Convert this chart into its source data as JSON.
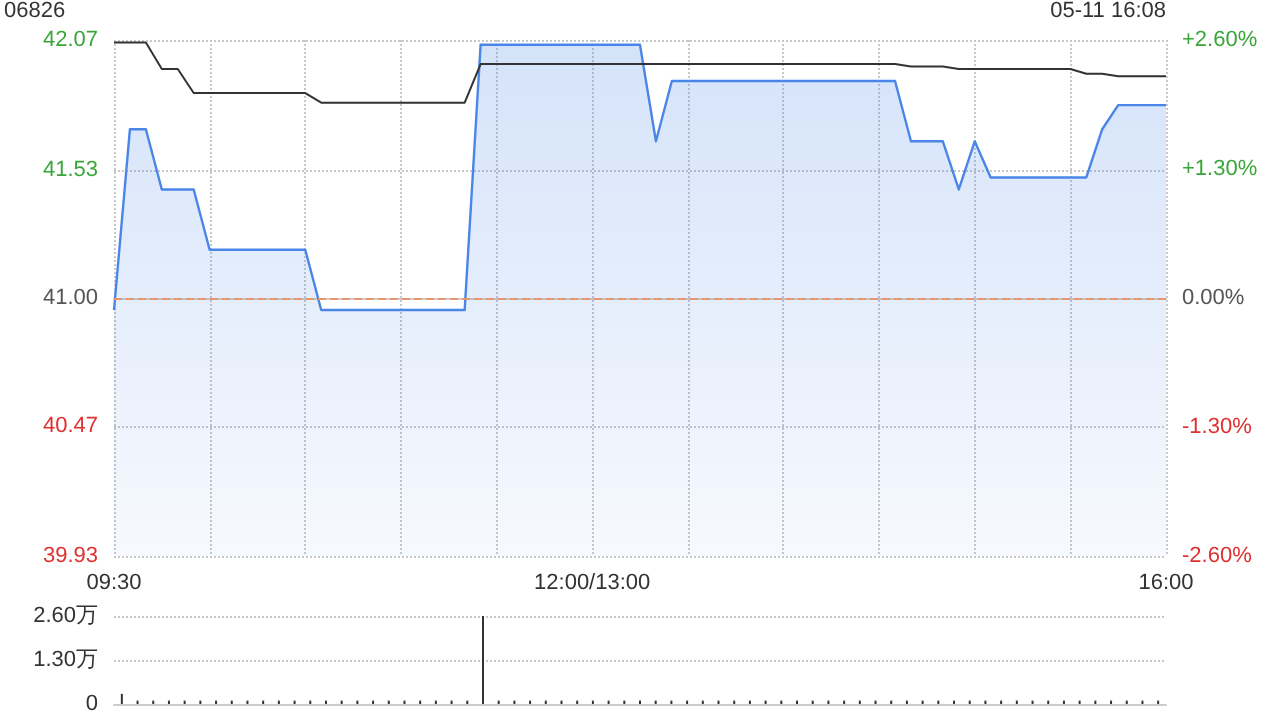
{
  "chart_data": [
    {
      "type": "line",
      "title": "06826",
      "annotations": [
        "05-11 16:08"
      ],
      "categories": [
        "09:30",
        null,
        null,
        null,
        null,
        null,
        null,
        null,
        null,
        null,
        null,
        null,
        null,
        null,
        null,
        null,
        null,
        null,
        null,
        null,
        null,
        null,
        null,
        null,
        null,
        null,
        null,
        null,
        null,
        null,
        "12:00/13:00",
        null,
        null,
        null,
        null,
        null,
        null,
        null,
        null,
        null,
        null,
        null,
        null,
        null,
        null,
        null,
        null,
        null,
        null,
        null,
        null,
        null,
        null,
        null,
        null,
        null,
        null,
        null,
        null,
        null,
        null,
        null,
        null,
        null,
        null,
        null,
        "16:00"
      ],
      "series": [
        {
          "type": "area",
          "color": "#4a86e8",
          "values": [
            40.95,
            41.7,
            41.7,
            41.45,
            41.45,
            41.45,
            41.2,
            41.2,
            41.2,
            41.2,
            41.2,
            41.2,
            41.2,
            40.95,
            40.95,
            40.95,
            40.95,
            40.95,
            40.95,
            40.95,
            40.95,
            40.95,
            40.95,
            42.05,
            42.05,
            42.05,
            42.05,
            42.05,
            42.05,
            42.05,
            42.05,
            42.05,
            42.05,
            42.05,
            41.65,
            41.9,
            41.9,
            41.9,
            41.9,
            41.9,
            41.9,
            41.9,
            41.9,
            41.9,
            41.9,
            41.9,
            41.9,
            41.9,
            41.9,
            41.9,
            41.65,
            41.65,
            41.65,
            41.45,
            41.65,
            41.5,
            41.5,
            41.5,
            41.5,
            41.5,
            41.5,
            41.5,
            41.7,
            41.8,
            41.8,
            41.8,
            41.8
          ]
        },
        {
          "type": "line",
          "color": "#333333",
          "values": [
            42.06,
            42.06,
            42.06,
            41.95,
            41.95,
            41.85,
            41.85,
            41.85,
            41.85,
            41.85,
            41.85,
            41.85,
            41.85,
            41.81,
            41.81,
            41.81,
            41.81,
            41.81,
            41.81,
            41.81,
            41.81,
            41.81,
            41.81,
            41.97,
            41.97,
            41.97,
            41.97,
            41.97,
            41.97,
            41.97,
            41.97,
            41.97,
            41.97,
            41.97,
            41.97,
            41.97,
            41.97,
            41.97,
            41.97,
            41.97,
            41.97,
            41.97,
            41.97,
            41.97,
            41.97,
            41.97,
            41.97,
            41.97,
            41.97,
            41.97,
            41.96,
            41.96,
            41.96,
            41.95,
            41.95,
            41.95,
            41.95,
            41.95,
            41.95,
            41.95,
            41.95,
            41.93,
            41.93,
            41.92,
            41.92,
            41.92,
            41.92
          ]
        }
      ],
      "ylim": [
        39.93,
        42.07
      ],
      "yticks": [
        39.93,
        40.47,
        {
          "value": 41,
          "label": "41.00"
        },
        41.53,
        42.07
      ],
      "y2lim": [
        -2.6,
        2.6
      ],
      "y2ticks": [
        {
          "value": -2.6,
          "label": "-2.60%"
        },
        {
          "value": -1.3,
          "label": "-1.30%"
        },
        {
          "value": 0,
          "label": "0.00%"
        },
        {
          "value": 1.3,
          "label": "+1.30%"
        },
        {
          "value": 2.6,
          "label": "+2.60%"
        }
      ],
      "ref_lines": [
        {
          "axis": "y",
          "value": 41,
          "color": "#e8956b",
          "line_style": "dashed"
        }
      ],
      "grid": true,
      "marker": "none",
      "line_style": "solid"
    },
    {
      "type": "bar",
      "color": "#333333",
      "tick_labels": "y",
      "categories": [
        null,
        null,
        null,
        null,
        null,
        null,
        null,
        null,
        null,
        null,
        null,
        null,
        null,
        null,
        null,
        null,
        null,
        null,
        null,
        null,
        null,
        null,
        null,
        null,
        null,
        null,
        null,
        null,
        null,
        null,
        null,
        null,
        null,
        null,
        null,
        null,
        null,
        null,
        null,
        null,
        null,
        null,
        null,
        null,
        null,
        null,
        null,
        null,
        null,
        null,
        null,
        null,
        null,
        null,
        null,
        null,
        null,
        null,
        null,
        null,
        null,
        null,
        null,
        null,
        null,
        null,
        null
      ],
      "values": [
        0.3,
        0.1,
        0.1,
        0.1,
        0.1,
        0.1,
        0.1,
        0.1,
        0.1,
        0.1,
        0.1,
        0.1,
        0.1,
        0.1,
        0.1,
        0.1,
        0.1,
        0.1,
        0.1,
        0.1,
        0.1,
        0.1,
        0.1,
        2.6,
        0.1,
        0.1,
        0.1,
        0.1,
        0.1,
        0.1,
        0.1,
        0.1,
        0.1,
        0.1,
        0.1,
        0.1,
        0.1,
        0.1,
        0.1,
        0.1,
        0.1,
        0.1,
        0.1,
        0.1,
        0.1,
        0.1,
        0.1,
        0.1,
        0.1,
        0.1,
        0.1,
        0.1,
        0.1,
        0.1,
        0.1,
        0.1,
        0.1,
        0.1,
        0.1,
        0.1,
        0.1,
        0.1,
        0.1,
        0.1,
        0.1,
        0.1,
        0.1
      ],
      "ylim": [
        0,
        2.6
      ],
      "yticks": [
        0,
        {
          "value": 1.3,
          "label": "1.30万"
        },
        {
          "value": 2.6,
          "label": "2.60万"
        }
      ],
      "grid": "y"
    }
  ]
}
